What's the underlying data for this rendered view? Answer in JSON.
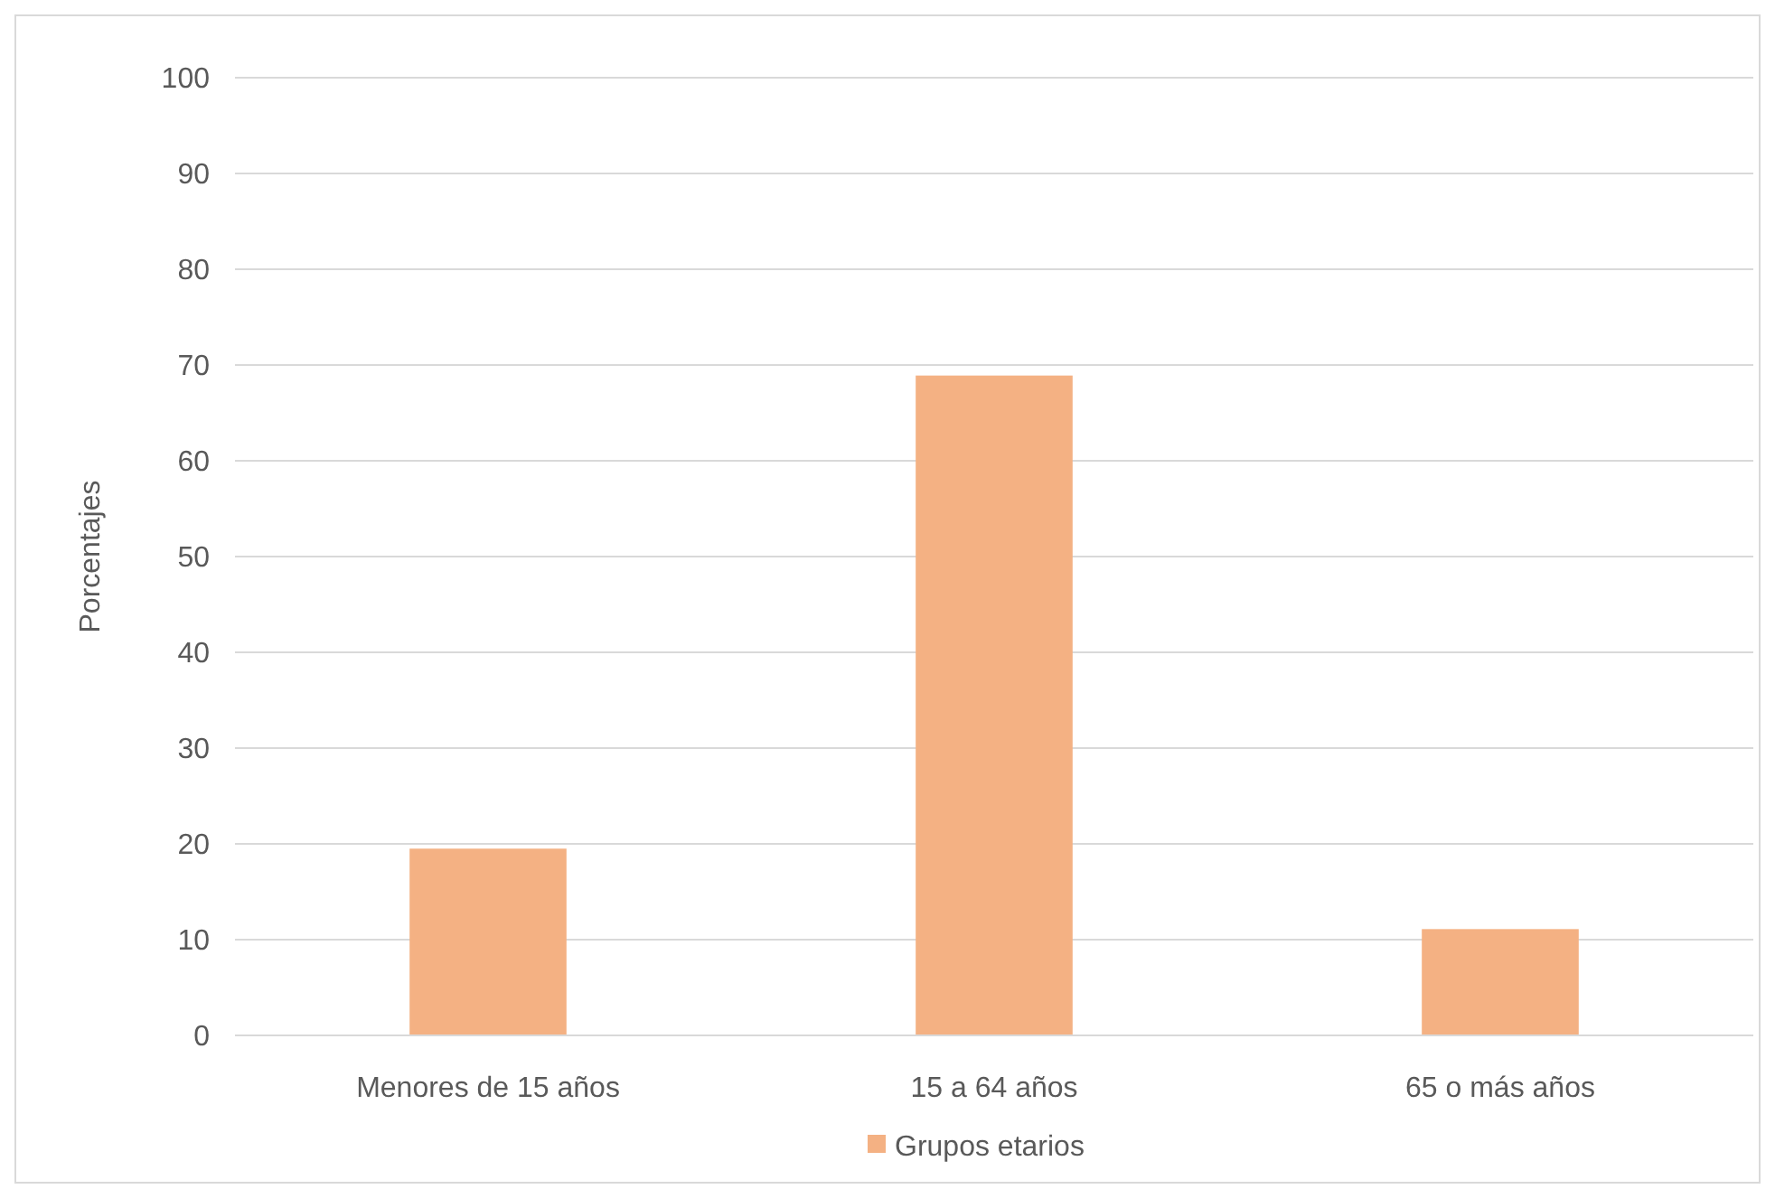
{
  "chart_data": {
    "type": "bar",
    "ylabel": "Porcentajes",
    "categories": [
      "Menores de 15 años",
      "15 a 64 años",
      "65 o más años"
    ],
    "series": [
      {
        "name": "Grupos etarios",
        "color": "#f4b183",
        "values": [
          19.5,
          68.9,
          11.1
        ]
      }
    ],
    "ylim": [
      0,
      100
    ],
    "yticks": [
      0,
      10,
      20,
      30,
      40,
      50,
      60,
      70,
      80,
      90,
      100
    ],
    "grid": "y",
    "legend": "bottom"
  }
}
